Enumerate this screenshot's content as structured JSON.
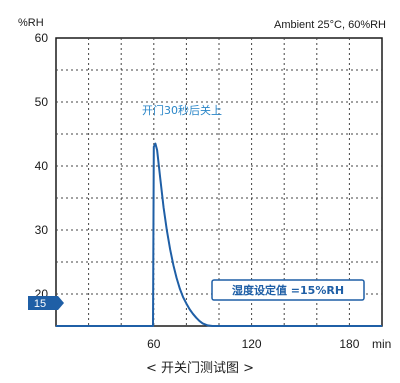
{
  "chart_data": {
    "type": "line",
    "ylabel": "%RH",
    "xlabel": "min",
    "title": "Ambient 25°C, 60%RH",
    "xlim": [
      0,
      200
    ],
    "ylim": [
      15,
      60
    ],
    "x_ticks": [
      "60",
      "120",
      "180"
    ],
    "y_ticks": [
      "60",
      "50",
      "40",
      "30",
      "20"
    ],
    "y_marker": "15",
    "annotation": "开门30秒后关上",
    "setpoint_label": "湿度设定值 =15%RH",
    "caption": "< 开关门测试图 >",
    "series": [
      {
        "x": [
          0,
          58,
          59.5,
          60,
          61,
          62,
          64,
          66,
          68,
          70,
          72,
          74,
          76,
          78,
          80,
          82,
          84,
          86,
          88,
          90,
          93,
          96,
          200
        ],
        "y": [
          15,
          15,
          15,
          43,
          43.5,
          42.5,
          38,
          33.5,
          30,
          27,
          24.5,
          22.5,
          20.8,
          19.5,
          18.5,
          17.6,
          16.9,
          16.3,
          15.8,
          15.4,
          15.1,
          15,
          15
        ]
      }
    ],
    "color": "#1f5fa6",
    "grid": true
  }
}
